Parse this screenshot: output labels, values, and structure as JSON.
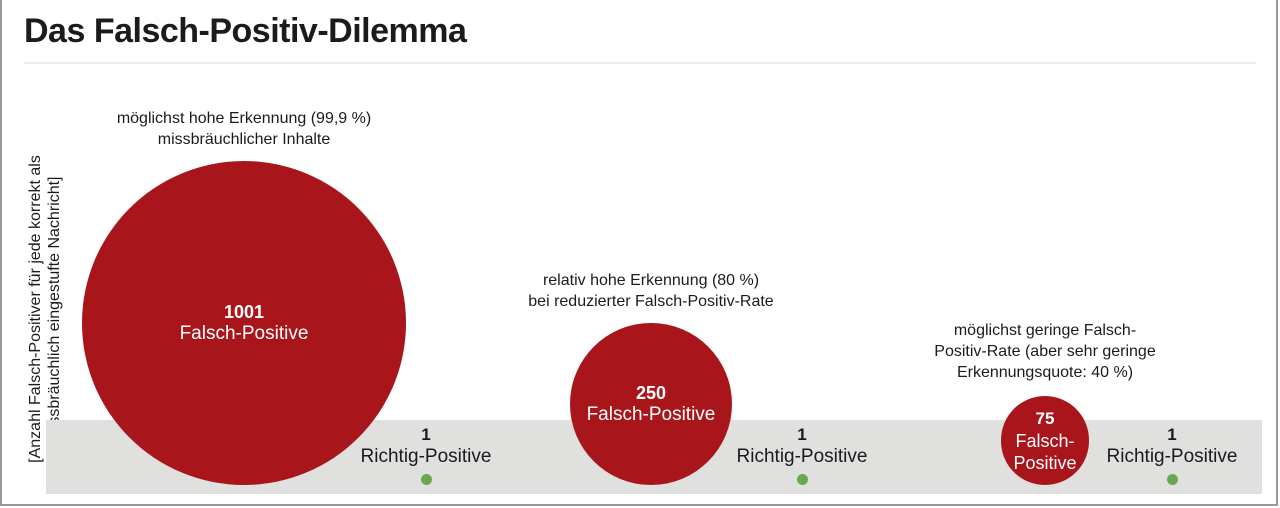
{
  "title": "Das Falsch-Positiv-Dilemma",
  "y_axis_label": "[Anzahl Falsch-Positiver für jede korrekt als missbräuchlich eingestufte Nachricht]",
  "colors": {
    "false_positive": "#a8161c",
    "true_positive": "#6aa84f",
    "band": "#e0e0df"
  },
  "chart_data": {
    "type": "bubble",
    "title": "Das Falsch-Positiv-Dilemma",
    "ylabel": "[Anzahl Falsch-Positiver für jede korrekt als missbräuchlich eingestufte Nachricht]",
    "groups": [
      {
        "annotation": [
          "möglichst hohe Erkennung (99,9 %)",
          "missbräuchlicher Inhalte"
        ],
        "false_positive_value": "1001",
        "false_positive_label": [
          "Falsch-Positive"
        ],
        "true_positive_value": "1",
        "true_positive_label": "Richtig-Positive"
      },
      {
        "annotation": [
          "relativ hohe Erkennung (80 %)",
          "bei reduzierter Falsch-Positiv-Rate"
        ],
        "false_positive_value": "250",
        "false_positive_label": [
          "Falsch-Positive"
        ],
        "true_positive_value": "1",
        "true_positive_label": "Richtig-Positive"
      },
      {
        "annotation": [
          "möglichst geringe Falsch-",
          "Positiv-Rate (aber sehr geringe",
          "Erkennungsquote: 40 %)"
        ],
        "false_positive_value": "75",
        "false_positive_label": [
          "Falsch-",
          "Positive"
        ],
        "true_positive_value": "1",
        "true_positive_label": "Richtig-Positive"
      }
    ]
  }
}
